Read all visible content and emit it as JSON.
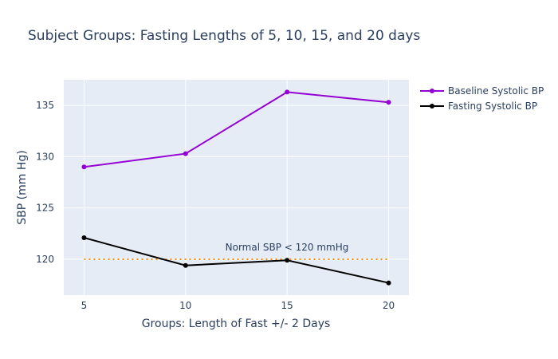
{
  "chart_data": {
    "type": "line",
    "title": "Subject Groups: Fasting Lengths of 5, 10, 15, and 20 days",
    "xlabel": "Groups: Length of Fast +/- 2 Days",
    "ylabel": "SBP (mm Hg)",
    "x": [
      5,
      10,
      15,
      20
    ],
    "x_ticks": [
      "5",
      "10",
      "15",
      "20"
    ],
    "y_ticks": [
      "120",
      "125",
      "130",
      "135"
    ],
    "xlim": [
      4,
      21
    ],
    "ylim": [
      116.5,
      137.5
    ],
    "grid": true,
    "legend_position": "top-right",
    "series": [
      {
        "name": "Baseline Systolic BP",
        "color": "#9400d3",
        "values": [
          129.0,
          130.3,
          136.3,
          135.3
        ]
      },
      {
        "name": "Fasting Systolic BP",
        "color": "#000000",
        "values": [
          122.1,
          119.4,
          119.9,
          117.7
        ]
      }
    ],
    "reference_line": {
      "y": 120,
      "x_range": [
        5,
        20
      ],
      "color": "#ff8c00",
      "label": "Normal SBP < 120 mmHg"
    }
  }
}
